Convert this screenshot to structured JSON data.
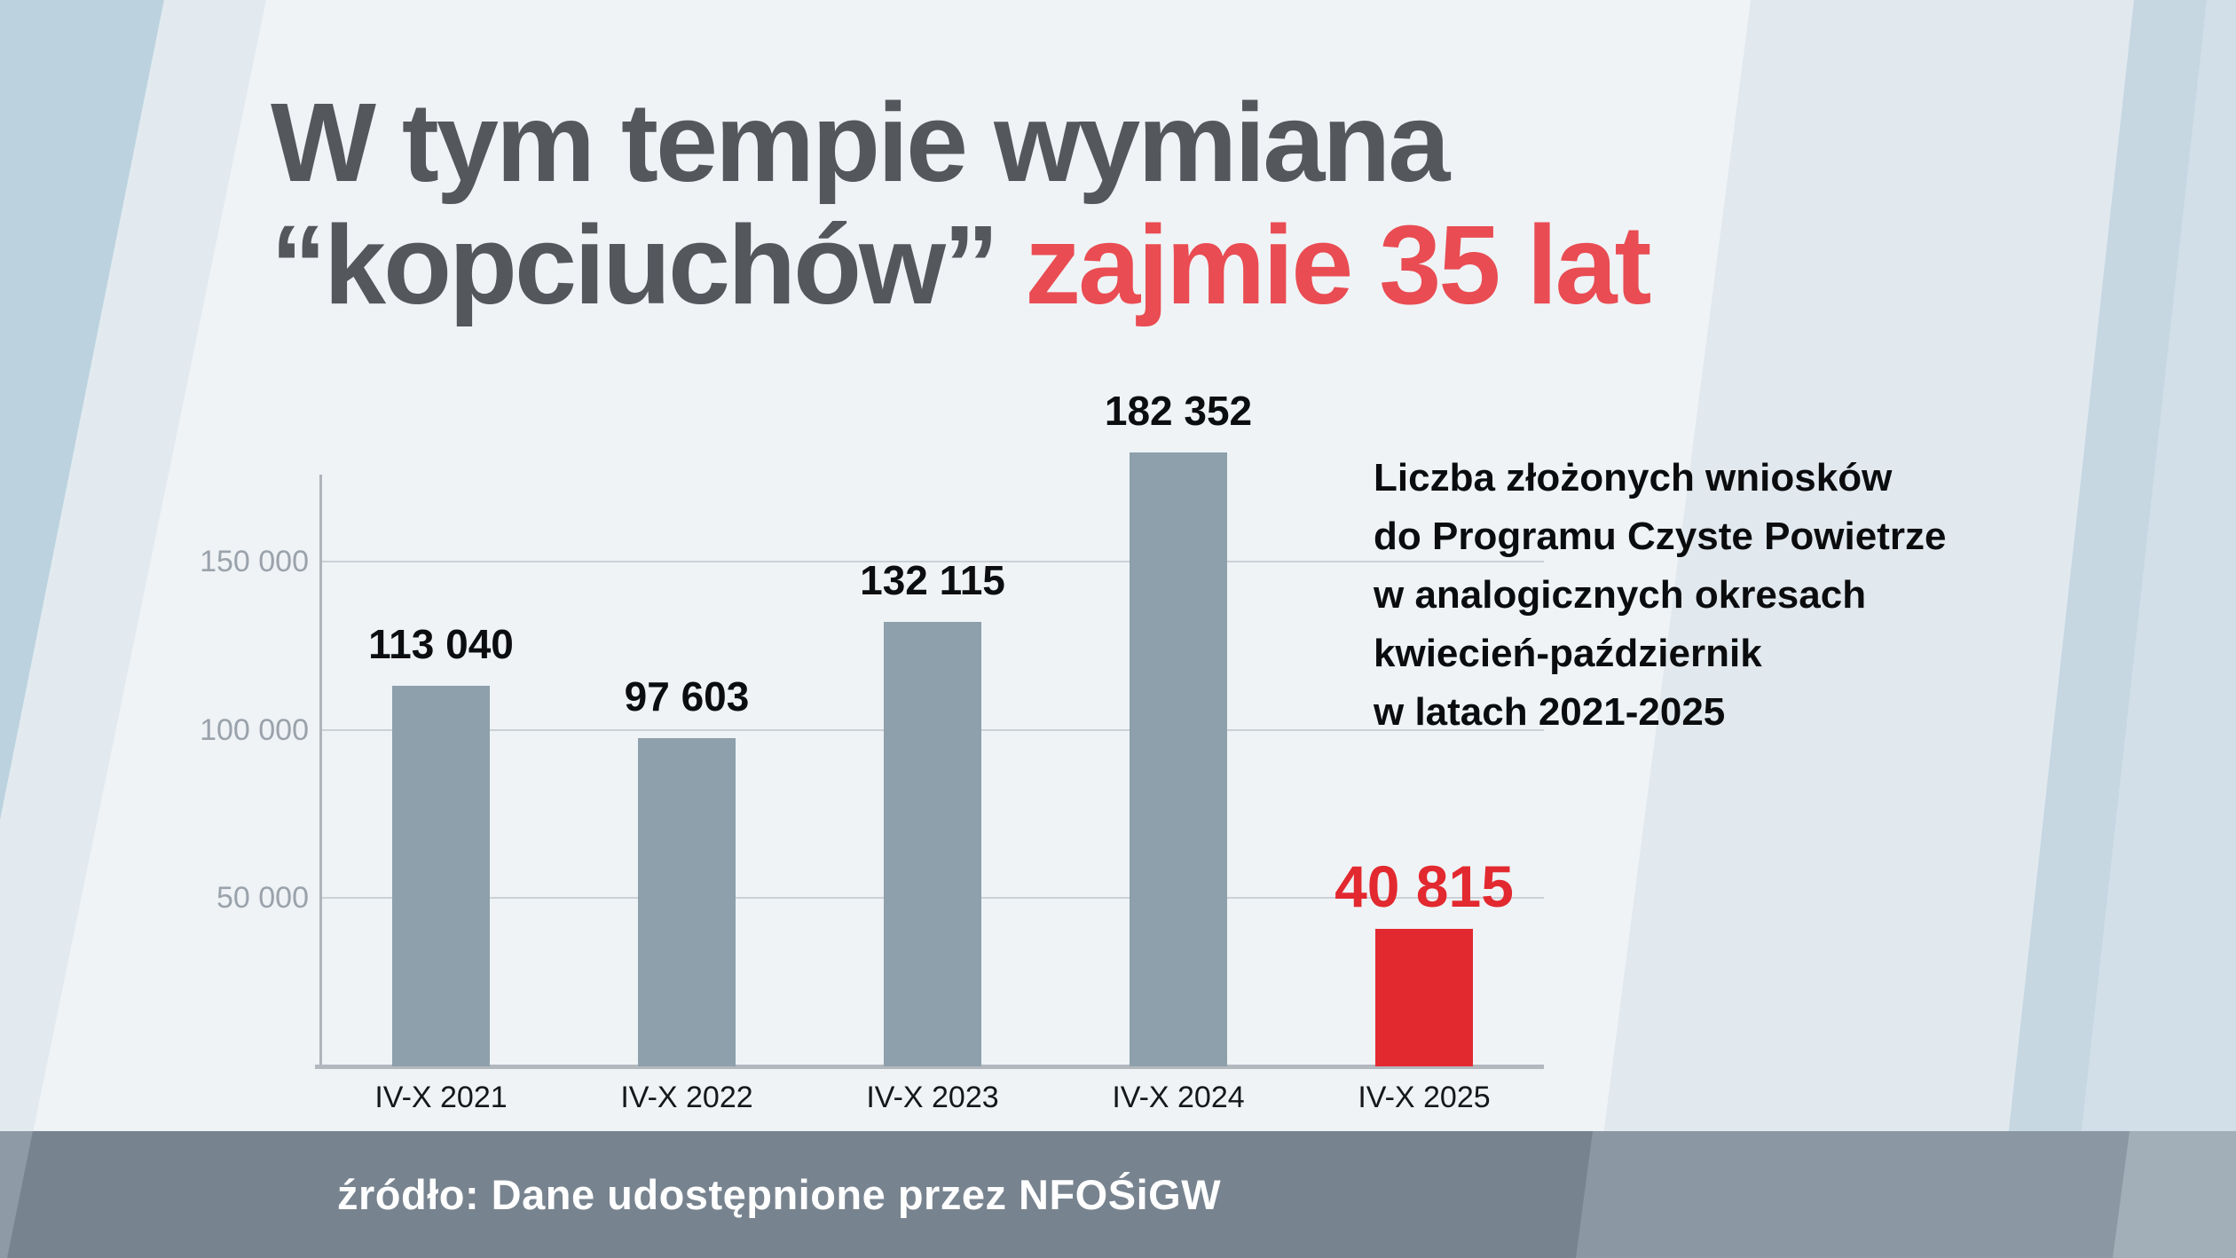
{
  "title": {
    "line1": "W tym tempie wymiana",
    "line2_dark": "“kopciuchów” ",
    "line2_red": "zajmie 35 lat"
  },
  "annotation": {
    "lines": [
      "Liczba złożonych wniosków",
      "do Programu Czyste Powietrze",
      "w analogicznych okresach",
      "kwiecień-październik",
      "w latach 2021-2025"
    ]
  },
  "footer": {
    "source_label": "źródło: Dane udostępnione przez NFOŚiGW"
  },
  "colors": {
    "title_dark": "#54585d",
    "title_red": "#e94c52",
    "bar_gray": "#8da0ab",
    "bar_red": "#e2292f",
    "gridline": "#cbd1d6",
    "footer_band": "#77838f"
  },
  "chart_data": {
    "type": "bar",
    "title": "Liczba złożonych wniosków do Programu Czyste Powietrze w analogicznych okresach kwiecień-październik w latach 2021-2025",
    "categories": [
      "IV-X 2021",
      "IV-X 2022",
      "IV-X 2023",
      "IV-X 2024",
      "IV-X 2025"
    ],
    "values": [
      113040,
      97603,
      132115,
      182352,
      40815
    ],
    "value_labels": [
      "113 040",
      "97 603",
      "132 115",
      "182 352",
      "40 815"
    ],
    "highlight_index": 4,
    "bar_color": "#8da0ab",
    "highlight_color": "#e2292f",
    "yticks": [
      {
        "label": "150 000",
        "value": 150000
      },
      {
        "label": "100 000",
        "value": 100000
      },
      {
        "label": "50 000",
        "value": 50000
      }
    ],
    "ylim": [
      0,
      176000
    ],
    "xlabel": "",
    "ylabel": "",
    "grid": true,
    "legend": false
  }
}
